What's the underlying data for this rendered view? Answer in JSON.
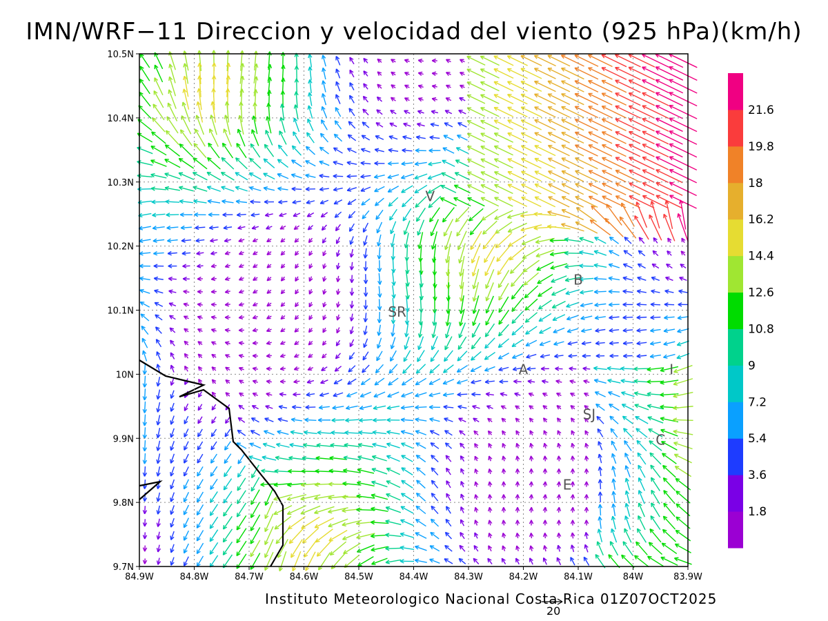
{
  "title": "IMN/WRF−11 Direccion y velocidad del viento (925 hPa)(km/h)",
  "footer": "Instituto Meteorologico Nacional Costa Rica 01Z07OCT2025",
  "scale_arrow_label": "20",
  "map": {
    "lon_range": [
      -84.9,
      -83.9
    ],
    "lat_range": [
      9.7,
      10.5
    ],
    "grid": "dotted",
    "lon_ticks": [
      "84.9W",
      "84.8W",
      "84.7W",
      "84.6W",
      "84.5W",
      "84.4W",
      "84.3W",
      "84.2W",
      "84.1W",
      "84W",
      "83.9W"
    ],
    "lat_ticks": [
      "9.7N",
      "9.8N",
      "9.9N",
      "10N",
      "10.1N",
      "10.2N",
      "10.3N",
      "10.4N",
      "10.5N"
    ],
    "cities": [
      {
        "label": "V",
        "lon": -84.37,
        "lat": 10.27
      },
      {
        "label": "SR",
        "lon": -84.43,
        "lat": 10.09
      },
      {
        "label": "B",
        "lon": -84.1,
        "lat": 10.14
      },
      {
        "label": "A",
        "lon": -84.2,
        "lat": 10.0
      },
      {
        "label": "I",
        "lon": -83.93,
        "lat": 10.0
      },
      {
        "label": "SJ",
        "lon": -84.08,
        "lat": 9.93
      },
      {
        "label": "C",
        "lon": -83.95,
        "lat": 9.89
      },
      {
        "label": "E",
        "lon": -84.12,
        "lat": 9.82
      }
    ],
    "coastline_color": "#000000"
  },
  "colorbar": {
    "labels": [
      "1.8",
      "3.6",
      "5.4",
      "7.2",
      "9",
      "10.8",
      "12.6",
      "14.4",
      "16.2",
      "18",
      "19.8",
      "21.6"
    ],
    "colors": [
      "#9b00d3",
      "#7a00e6",
      "#1e3cff",
      "#0aa0ff",
      "#00c8c8",
      "#00d28c",
      "#00dc00",
      "#a0e632",
      "#e6dc32",
      "#e6af2d",
      "#f08228",
      "#fa3c3c",
      "#f00082"
    ]
  }
}
